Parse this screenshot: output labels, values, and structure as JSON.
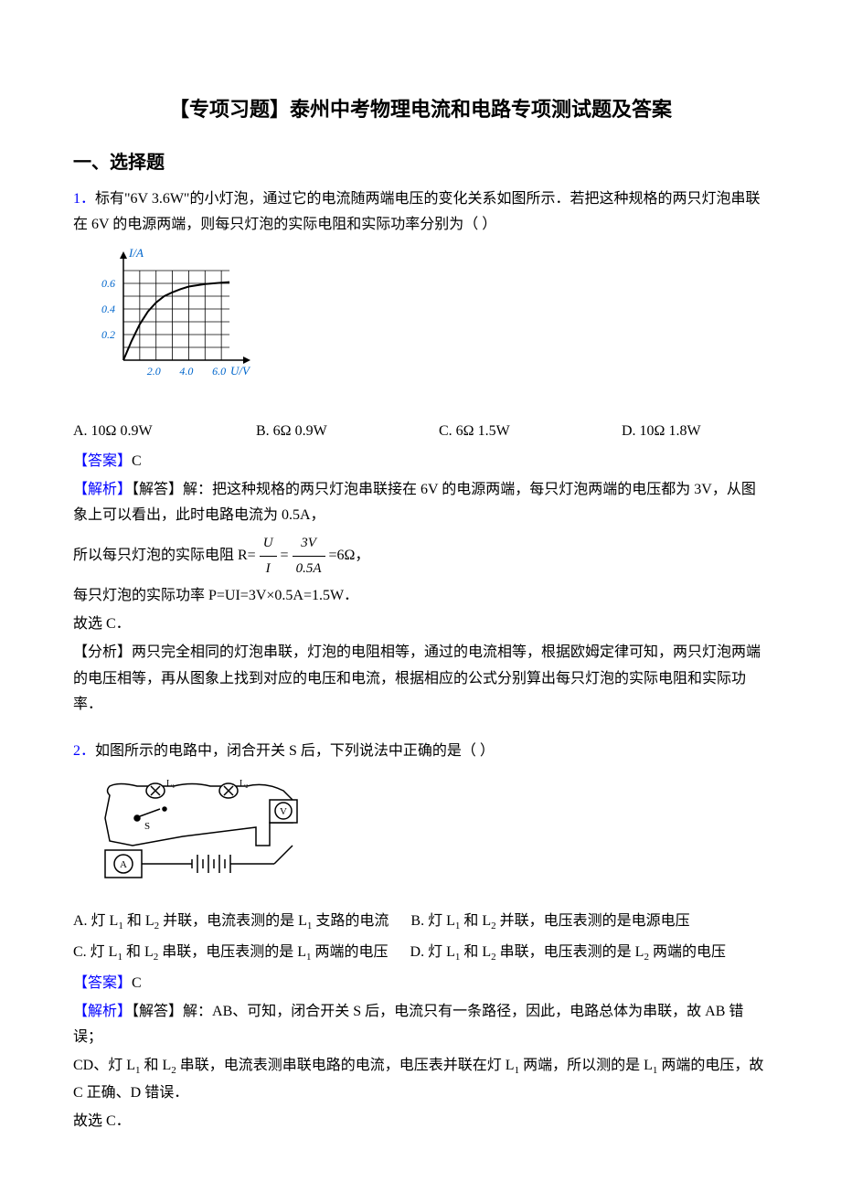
{
  "title": "【专项习题】泰州中考物理电流和电路专项测试题及答案",
  "section_heading": "一、选择题",
  "q1": {
    "number": "1．",
    "text_part1": "标有\"6V  3.6W\"的小灯泡，通过它的电流随两端电压的变化关系如图所示．若把这种规格的两只灯泡串联在 6V 的电源两端，则每只灯泡的实际电阻和实际功率分别为（  ）",
    "chart": {
      "ylabel": "I/A",
      "xlabel": "U/V",
      "yticks": [
        0.2,
        0.4,
        0.6
      ],
      "xticks": [
        2.0,
        4.0,
        6.0
      ],
      "ymax": 0.75,
      "xmax": 7.0,
      "axis_color": "#000000",
      "grid_color": "#000000",
      "curve_color": "#000000",
      "label_color": "#0066cc",
      "width": 180,
      "height": 155,
      "curve_points": [
        [
          0,
          0
        ],
        [
          0.5,
          0.15
        ],
        [
          1.0,
          0.28
        ],
        [
          1.5,
          0.38
        ],
        [
          2.0,
          0.45
        ],
        [
          2.5,
          0.5
        ],
        [
          3.0,
          0.53
        ],
        [
          3.5,
          0.555
        ],
        [
          4.0,
          0.575
        ],
        [
          4.5,
          0.585
        ],
        [
          5.0,
          0.595
        ],
        [
          5.5,
          0.6
        ],
        [
          6.0,
          0.605
        ],
        [
          6.5,
          0.61
        ]
      ]
    },
    "options": {
      "a": "A. 10Ω  0.9W",
      "b": "B. 6Ω  0.9W",
      "c": "C. 6Ω  1.5W",
      "d": "D. 10Ω  1.8W"
    },
    "answer_label": "【答案】",
    "answer": "C",
    "analysis_label": "【解析】",
    "analysis_1": "【解答】解：把这种规格的两只灯泡串联接在 6V 的电源两端，每只灯泡两端的电压都为 3V，从图象上可以看出，此时电路电流为 0.5A，",
    "analysis_2_pre": "所以每只灯泡的实际电阻 R=",
    "frac1_num": "U",
    "frac1_den": "I",
    "analysis_2_mid": "=",
    "frac2_num": "3V",
    "frac2_den": "0.5A",
    "analysis_2_post": "=6Ω，",
    "analysis_3": "每只灯泡的实际功率 P=UI=3V×0.5A=1.5W．",
    "analysis_4": "故选 C．",
    "analysis_5": "【分析】两只完全相同的灯泡串联，灯泡的电阻相等，通过的电流相等，根据欧姆定律可知，两只灯泡两端的电压相等，再从图象上找到对应的电压和电流，根据相应的公式分别算出每只灯泡的实际电阻和实际功率．"
  },
  "q2": {
    "number": "2．",
    "text": "如图所示的电路中，闭合开关 S 后，下列说法中正确的是（  ）",
    "options": {
      "a_pre": "A. 灯 L",
      "a_mid": " 和 L",
      "a_post": " 并联，电流表测的是 L",
      "a_end": " 支路的电流",
      "b_pre": "B. 灯 L",
      "b_mid": " 和 L",
      "b_post": " 并联，电压表测的是电源电压",
      "c_pre": "C. 灯 L",
      "c_mid": " 和 L",
      "c_post": " 串联，电压表测的是 L",
      "c_end": " 两端的电压",
      "d_pre": "D. 灯 L",
      "d_mid": " 和 L",
      "d_post": " 串联，电压表测的是 L",
      "d_end": " 两端的电压"
    },
    "answer_label": "【答案】",
    "answer": "C",
    "analysis_label": "【解析】",
    "analysis_1": "【解答】解：AB、可知，闭合开关 S 后，电流只有一条路径，因此，电路总体为串联，故 AB 错误；",
    "analysis_2_pre": "CD、灯 L",
    "analysis_2_mid1": " 和 L",
    "analysis_2_mid2": " 串联，电流表测串联电路的电流，电压表并联在灯 L",
    "analysis_2_mid3": " 两端，所以测的是 L",
    "analysis_2_post": " 两端的电压，故 C 正确、D 错误．",
    "analysis_3": "故选 C．"
  }
}
